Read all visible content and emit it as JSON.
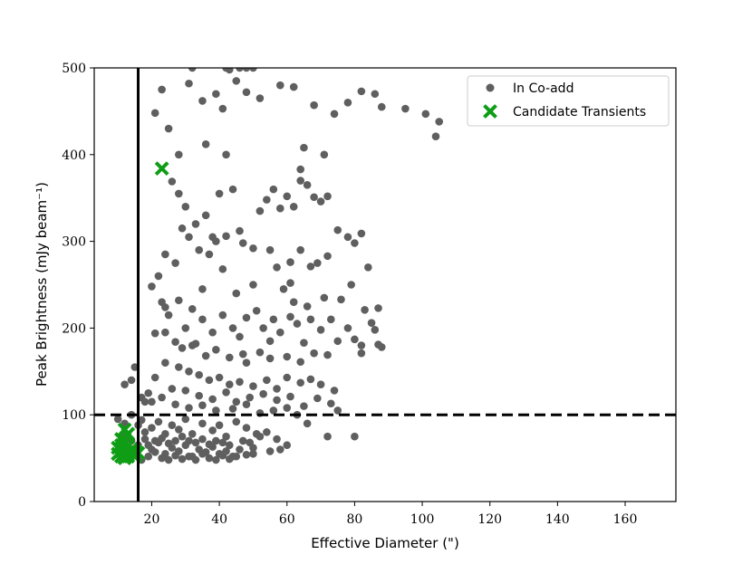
{
  "chart_data": {
    "type": "scatter",
    "xlabel": "Effective Diameter (\")",
    "ylabel": "Peak Brightness (mJy beam⁻¹)",
    "xlim": [
      3,
      175
    ],
    "ylim": [
      0,
      500
    ],
    "x_ticks": [
      20,
      40,
      60,
      80,
      100,
      120,
      140,
      160
    ],
    "y_ticks": [
      0,
      100,
      200,
      300,
      400,
      500
    ],
    "grid": false,
    "legend_position": "top-right",
    "reference_lines": [
      {
        "orientation": "vertical",
        "value": 16,
        "style": "solid"
      },
      {
        "orientation": "horizontal",
        "value": 100,
        "style": "dashed"
      }
    ],
    "series": [
      {
        "name": "In Co-add",
        "marker": "circle",
        "color": "#5f5f5f",
        "points": [
          [
            21,
            448
          ],
          [
            23,
            475
          ],
          [
            25,
            430
          ],
          [
            28,
            400
          ],
          [
            31,
            482
          ],
          [
            35,
            462
          ],
          [
            39,
            470
          ],
          [
            41,
            453
          ],
          [
            43,
            498
          ],
          [
            45,
            485
          ],
          [
            48,
            472
          ],
          [
            52,
            465
          ],
          [
            58,
            480
          ],
          [
            62,
            478
          ],
          [
            68,
            457
          ],
          [
            74,
            447
          ],
          [
            78,
            460
          ],
          [
            82,
            473
          ],
          [
            86,
            470
          ],
          [
            88,
            455
          ],
          [
            95,
            453
          ],
          [
            101,
            447
          ],
          [
            104,
            421
          ],
          [
            105,
            438
          ],
          [
            32,
            500
          ],
          [
            42,
            500
          ],
          [
            46,
            500
          ],
          [
            48,
            500
          ],
          [
            50,
            500
          ],
          [
            26,
            369
          ],
          [
            28,
            355
          ],
          [
            30,
            340
          ],
          [
            33,
            320
          ],
          [
            36,
            330
          ],
          [
            38,
            305
          ],
          [
            40,
            355
          ],
          [
            44,
            360
          ],
          [
            46,
            312
          ],
          [
            50,
            292
          ],
          [
            52,
            335
          ],
          [
            54,
            348
          ],
          [
            56,
            360
          ],
          [
            58,
            338
          ],
          [
            60,
            352
          ],
          [
            62,
            340
          ],
          [
            64,
            370
          ],
          [
            66,
            365
          ],
          [
            68,
            351
          ],
          [
            70,
            346
          ],
          [
            72,
            352
          ],
          [
            75,
            313
          ],
          [
            78,
            305
          ],
          [
            80,
            298
          ],
          [
            82,
            309
          ],
          [
            22,
            260
          ],
          [
            24,
            285
          ],
          [
            27,
            275
          ],
          [
            29,
            315
          ],
          [
            31,
            305
          ],
          [
            34,
            290
          ],
          [
            37,
            285
          ],
          [
            39,
            300
          ],
          [
            42,
            306
          ],
          [
            47,
            298
          ],
          [
            55,
            290
          ],
          [
            57,
            270
          ],
          [
            61,
            276
          ],
          [
            64,
            290
          ],
          [
            67,
            271
          ],
          [
            69,
            275
          ],
          [
            72,
            283
          ],
          [
            84,
            270
          ],
          [
            71,
            400
          ],
          [
            64,
            383
          ],
          [
            65,
            408
          ],
          [
            36,
            412
          ],
          [
            42,
            400
          ],
          [
            20,
            248
          ],
          [
            23,
            230
          ],
          [
            25,
            215
          ],
          [
            28,
            232
          ],
          [
            30,
            200
          ],
          [
            32,
            222
          ],
          [
            35,
            210
          ],
          [
            38,
            195
          ],
          [
            41,
            215
          ],
          [
            44,
            200
          ],
          [
            46,
            190
          ],
          [
            48,
            212
          ],
          [
            51,
            220
          ],
          [
            53,
            200
          ],
          [
            56,
            210
          ],
          [
            58,
            195
          ],
          [
            61,
            213
          ],
          [
            63,
            205
          ],
          [
            65,
            183
          ],
          [
            67,
            210
          ],
          [
            70,
            198
          ],
          [
            73,
            210
          ],
          [
            75,
            185
          ],
          [
            78,
            200
          ],
          [
            80,
            187
          ],
          [
            82,
            180
          ],
          [
            85,
            206
          ],
          [
            87,
            181
          ],
          [
            24,
            195
          ],
          [
            27,
            184
          ],
          [
            29,
            177
          ],
          [
            33,
            182
          ],
          [
            36,
            168
          ],
          [
            39,
            175
          ],
          [
            43,
            166
          ],
          [
            47,
            170
          ],
          [
            52,
            172
          ],
          [
            55,
            165
          ],
          [
            60,
            167
          ],
          [
            64,
            161
          ],
          [
            68,
            171
          ],
          [
            72,
            169
          ],
          [
            24,
            160
          ],
          [
            28,
            155
          ],
          [
            31,
            150
          ],
          [
            34,
            146
          ],
          [
            37,
            140
          ],
          [
            40,
            143
          ],
          [
            43,
            135
          ],
          [
            46,
            138
          ],
          [
            50,
            133
          ],
          [
            54,
            140
          ],
          [
            57,
            130
          ],
          [
            60,
            143
          ],
          [
            64,
            137
          ],
          [
            67,
            141
          ],
          [
            70,
            135
          ],
          [
            74,
            128
          ],
          [
            26,
            130
          ],
          [
            30,
            128
          ],
          [
            34,
            122
          ],
          [
            38,
            118
          ],
          [
            42,
            126
          ],
          [
            45,
            115
          ],
          [
            49,
            120
          ],
          [
            53,
            124
          ],
          [
            57,
            117
          ],
          [
            61,
            121
          ],
          [
            65,
            110
          ],
          [
            69,
            119
          ],
          [
            73,
            113
          ],
          [
            20,
            115
          ],
          [
            23,
            120
          ],
          [
            27,
            112
          ],
          [
            31,
            108
          ],
          [
            35,
            111
          ],
          [
            39,
            105
          ],
          [
            44,
            107
          ],
          [
            48,
            112
          ],
          [
            52,
            102
          ],
          [
            56,
            105
          ],
          [
            60,
            108
          ],
          [
            63,
            100
          ],
          [
            86,
            198
          ],
          [
            88,
            178
          ],
          [
            83,
            221
          ],
          [
            87,
            223
          ],
          [
            82,
            171
          ],
          [
            61,
            252
          ],
          [
            59,
            245
          ],
          [
            21,
            194
          ],
          [
            24,
            224
          ],
          [
            35,
            245
          ],
          [
            45,
            240
          ],
          [
            50,
            250
          ],
          [
            41,
            268
          ],
          [
            32,
            180
          ],
          [
            48,
            160
          ],
          [
            55,
            185
          ],
          [
            62,
            230
          ],
          [
            66,
            225
          ],
          [
            71,
            235
          ],
          [
            76,
            233
          ],
          [
            79,
            250
          ],
          [
            14,
            140
          ],
          [
            12,
            135
          ],
          [
            15,
            155
          ],
          [
            17,
            120
          ],
          [
            18,
            115
          ],
          [
            19,
            125
          ],
          [
            21,
            143
          ],
          [
            66,
            90
          ],
          [
            75,
            105
          ],
          [
            80,
            75
          ],
          [
            72,
            75
          ],
          [
            10,
            95
          ],
          [
            12,
            90
          ],
          [
            14,
            100
          ],
          [
            16,
            88
          ],
          [
            17,
            94
          ],
          [
            18,
            80
          ],
          [
            20,
            85
          ],
          [
            22,
            92
          ],
          [
            24,
            78
          ],
          [
            26,
            88
          ],
          [
            28,
            83
          ],
          [
            30,
            95
          ],
          [
            32,
            78
          ],
          [
            35,
            90
          ],
          [
            38,
            82
          ],
          [
            40,
            88
          ],
          [
            42,
            75
          ],
          [
            45,
            92
          ],
          [
            48,
            85
          ],
          [
            51,
            78
          ],
          [
            54,
            80
          ],
          [
            57,
            72
          ],
          [
            60,
            65
          ],
          [
            12,
            75
          ],
          [
            14,
            70
          ],
          [
            16,
            65
          ],
          [
            18,
            72
          ],
          [
            20,
            60
          ],
          [
            22,
            68
          ],
          [
            24,
            55
          ],
          [
            26,
            62
          ],
          [
            28,
            58
          ],
          [
            30,
            65
          ],
          [
            32,
            52
          ],
          [
            34,
            60
          ],
          [
            36,
            57
          ],
          [
            38,
            63
          ],
          [
            40,
            55
          ],
          [
            42,
            58
          ],
          [
            44,
            52
          ],
          [
            46,
            60
          ],
          [
            48,
            54
          ],
          [
            50,
            62
          ],
          [
            52,
            75
          ],
          [
            13,
            50
          ],
          [
            15,
            55
          ],
          [
            17,
            48
          ],
          [
            19,
            52
          ],
          [
            21,
            57
          ],
          [
            23,
            50
          ],
          [
            25,
            48
          ],
          [
            27,
            53
          ],
          [
            29,
            49
          ],
          [
            31,
            52
          ],
          [
            33,
            48
          ],
          [
            35,
            55
          ],
          [
            37,
            50
          ],
          [
            39,
            48
          ],
          [
            41,
            53
          ],
          [
            43,
            49
          ],
          [
            45,
            52
          ],
          [
            11,
            60
          ],
          [
            13,
            62
          ],
          [
            15,
            58
          ],
          [
            19,
            65
          ],
          [
            21,
            70
          ],
          [
            23,
            73
          ],
          [
            25,
            67
          ],
          [
            27,
            70
          ],
          [
            29,
            75
          ],
          [
            31,
            70
          ],
          [
            33,
            68
          ],
          [
            35,
            72
          ],
          [
            37,
            66
          ],
          [
            39,
            70
          ],
          [
            41,
            68
          ],
          [
            43,
            65
          ],
          [
            47,
            70
          ],
          [
            49,
            68
          ],
          [
            55,
            58
          ],
          [
            58,
            60
          ],
          [
            50,
            55
          ]
        ]
      },
      {
        "name": "Candidate Transients",
        "marker": "x",
        "color": "#0f9d16",
        "points": [
          [
            23,
            384
          ],
          [
            12,
            83
          ],
          [
            13,
            78
          ],
          [
            11,
            72
          ],
          [
            12,
            67
          ],
          [
            10,
            62
          ],
          [
            11,
            58
          ],
          [
            12,
            55
          ],
          [
            13,
            52
          ],
          [
            14,
            56
          ],
          [
            15,
            58
          ],
          [
            12,
            50
          ],
          [
            10,
            55
          ],
          [
            11,
            52
          ],
          [
            13,
            64
          ],
          [
            14,
            60
          ],
          [
            15,
            52
          ],
          [
            16,
            56
          ],
          [
            12,
            60
          ],
          [
            13,
            57
          ],
          [
            11,
            65
          ]
        ]
      }
    ]
  }
}
